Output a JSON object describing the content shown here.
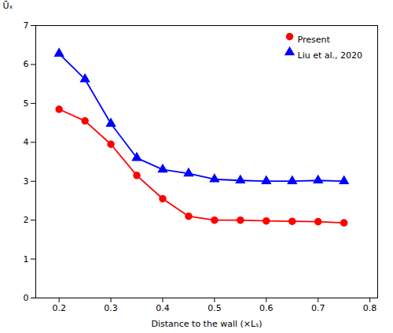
{
  "chart_data": {
    "type": "line",
    "xlabel": "Distance to the wall (×Lₛ)",
    "ylabel": "Ūₓ",
    "x": [
      0.2,
      0.25,
      0.3,
      0.35,
      0.4,
      0.45,
      0.5,
      0.55,
      0.6,
      0.65,
      0.7,
      0.75
    ],
    "series": [
      {
        "name": "Present",
        "color": "#FF0000",
        "marker": "circle",
        "values": [
          4.85,
          4.55,
          3.95,
          3.15,
          2.55,
          2.1,
          2.0,
          2.0,
          1.98,
          1.97,
          1.96,
          1.93
        ]
      },
      {
        "name": "Liu et al., 2020",
        "color": "#0000FF",
        "marker": "triangle",
        "values": [
          6.28,
          5.62,
          4.48,
          3.6,
          3.3,
          3.2,
          3.05,
          3.02,
          3.0,
          3.0,
          3.02,
          3.0
        ]
      }
    ],
    "xlim": [
      0.155,
      0.815
    ],
    "xticks": [
      0.2,
      0.3,
      0.4,
      0.5,
      0.6,
      0.7,
      0.8
    ],
    "ylim": [
      0,
      7
    ],
    "yticks": [
      0,
      1,
      2,
      3,
      4,
      5,
      6,
      7
    ],
    "legend": "upper right",
    "grid": false
  }
}
